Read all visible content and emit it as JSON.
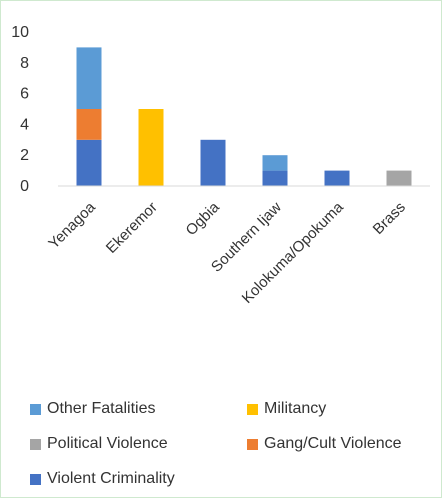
{
  "chart_data": {
    "type": "bar",
    "stacked": true,
    "categories": [
      "Yenagoa",
      "Ekeremor",
      "Ogbia",
      "Southern Ijaw",
      "Kolokuma/Opokuma",
      "Brass"
    ],
    "series": [
      {
        "name": "Violent Criminality",
        "color": "#4472c4",
        "values": [
          3,
          0,
          3,
          1,
          1,
          0
        ]
      },
      {
        "name": "Gang/Cult Violence",
        "color": "#ed7d31",
        "values": [
          2,
          0,
          0,
          0,
          0,
          0
        ]
      },
      {
        "name": "Political Violence",
        "color": "#a5a5a5",
        "values": [
          0,
          0,
          0,
          0,
          0,
          1
        ]
      },
      {
        "name": "Militancy",
        "color": "#ffc000",
        "values": [
          0,
          5,
          0,
          0,
          0,
          0
        ]
      },
      {
        "name": "Other Fatalities",
        "color": "#5b9bd5",
        "values": [
          4,
          0,
          0,
          1,
          0,
          0
        ]
      }
    ],
    "yticks": [
      0,
      2,
      4,
      6,
      8,
      10
    ],
    "ylim": [
      0,
      10
    ],
    "grid": false,
    "legend_position": "bottom",
    "legend_order": [
      "Other Fatalities",
      "Militancy",
      "Political Violence",
      "Gang/Cult Violence",
      "Violent Criminality"
    ]
  }
}
